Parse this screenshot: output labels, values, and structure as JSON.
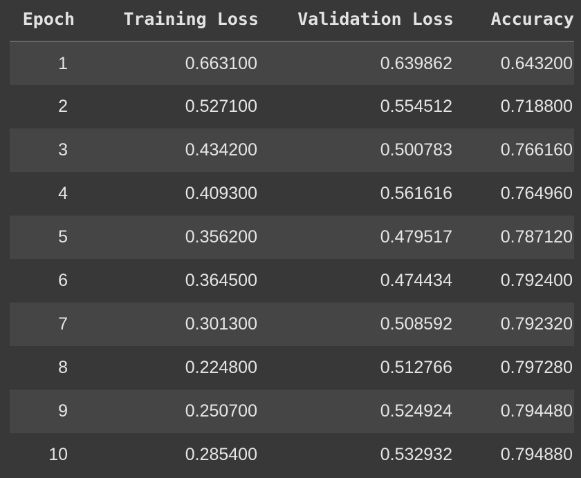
{
  "table": {
    "headers": [
      "Epoch",
      "Training Loss",
      "Validation Loss",
      "Accuracy"
    ],
    "rows": [
      [
        "1",
        "0.663100",
        "0.639862",
        "0.643200"
      ],
      [
        "2",
        "0.527100",
        "0.554512",
        "0.718800"
      ],
      [
        "3",
        "0.434200",
        "0.500783",
        "0.766160"
      ],
      [
        "4",
        "0.409300",
        "0.561616",
        "0.764960"
      ],
      [
        "5",
        "0.356200",
        "0.479517",
        "0.787120"
      ],
      [
        "6",
        "0.364500",
        "0.474434",
        "0.792400"
      ],
      [
        "7",
        "0.301300",
        "0.508592",
        "0.792320"
      ],
      [
        "8",
        "0.224800",
        "0.512766",
        "0.797280"
      ],
      [
        "9",
        "0.250700",
        "0.524924",
        "0.794480"
      ],
      [
        "10",
        "0.285400",
        "0.532932",
        "0.794880"
      ]
    ]
  },
  "colors": {
    "background": "#383838",
    "row_stripe": "#454545",
    "header_rule": "#666666",
    "text": "#e6e6e6"
  }
}
